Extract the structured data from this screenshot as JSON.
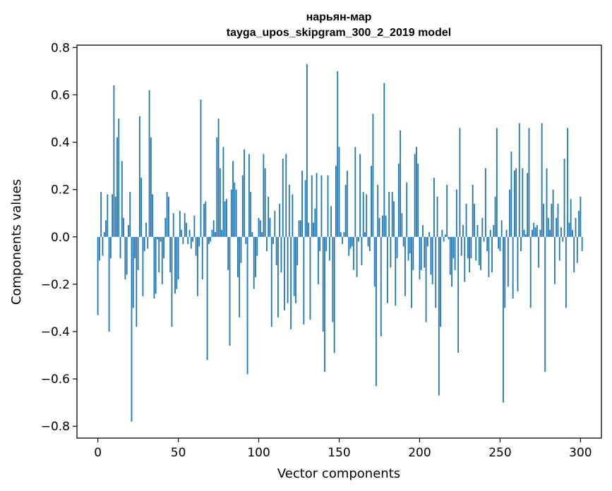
{
  "chart_data": {
    "type": "bar",
    "title_line1": "нарьян-мар",
    "title_line2": "tayga_upos_skipgram_300_2_2019 model",
    "xlabel": "Vector components",
    "ylabel": "Components values",
    "xlim": [
      -13,
      313
    ],
    "ylim": [
      -0.85,
      0.81
    ],
    "xticks": [
      0,
      50,
      100,
      150,
      200,
      250,
      300
    ],
    "xtick_labels": [
      "0",
      "50",
      "100",
      "150",
      "200",
      "250",
      "300"
    ],
    "yticks": [
      -0.8,
      -0.6,
      -0.4,
      -0.2,
      0.0,
      0.2,
      0.4,
      0.6,
      0.8
    ],
    "ytick_labels": [
      "−0.8",
      "−0.6",
      "−0.4",
      "−0.2",
      "0.0",
      "0.2",
      "0.4",
      "0.6",
      "0.8"
    ],
    "grid": false,
    "color": "#1f77b4",
    "values": [
      -0.33,
      -0.1,
      0.19,
      -0.08,
      0.02,
      0.07,
      0.18,
      -0.4,
      -0.09,
      0.18,
      0.64,
      0.17,
      0.42,
      0.5,
      -0.09,
      0.32,
      0.08,
      -0.18,
      -0.16,
      0.05,
      0.19,
      -0.78,
      -0.3,
      -0.09,
      -0.38,
      -0.14,
      0.51,
      0.25,
      -0.25,
      -0.06,
      0.06,
      -0.05,
      0.62,
      0.42,
      0.18,
      -0.26,
      -0.24,
      -0.01,
      -0.15,
      -0.02,
      -0.2,
      -0.09,
      0.08,
      0.19,
      0.17,
      -0.15,
      -0.38,
      0.1,
      -0.24,
      -0.22,
      -0.18,
      0.11,
      0.03,
      -0.03,
      0.1,
      0.06,
      -0.03,
      0.03,
      -0.05,
      -0.02,
      0.09,
      -0.08,
      -0.25,
      -0.04,
      0.58,
      -0.18,
      0.14,
      0.15,
      -0.52,
      -0.03,
      -0.02,
      0.03,
      0.07,
      0.02,
      0.42,
      0.5,
      0.29,
      0.03,
      0.38,
      0.15,
      0.16,
      -0.14,
      -0.46,
      0.2,
      0.32,
      0.23,
      0.2,
      -0.17,
      -0.34,
      -0.11,
      0.26,
      0.37,
      -0.03,
      -0.58,
      0.35,
      0.19,
      0.02,
      -0.22,
      -0.17,
      -0.08,
      0.08,
      0.07,
      0.02,
      0.35,
      0.29,
      -0.06,
      0.17,
      0.08,
      -0.38,
      -0.03,
      0.11,
      -0.12,
      -0.34,
      0.14,
      -0.15,
      0.33,
      -0.31,
      0.35,
      -0.28,
      0.22,
      -0.39,
      0.18,
      -0.25,
      -0.28,
      -0.12,
      0.07,
      0.07,
      0.28,
      -0.37,
      0.24,
      0.73,
      0.06,
      -0.35,
      0.26,
      0.06,
      0.12,
      0.27,
      -0.2,
      -0.06,
      0.26,
      -0.4,
      -0.57,
      -0.06,
      0.26,
      -0.1,
      0.13,
      -0.36,
      -0.49,
      0.3,
      0.7,
      0.38,
      0.02,
      -0.03,
      0.02,
      0.22,
      0.28,
      -0.08,
      -0.05,
      -0.04,
      -0.14,
      0.38,
      -0.17,
      -0.02,
      0.35,
      -0.12,
      0.19,
      0.02,
      0.18,
      -0.04,
      -0.06,
      0.3,
      0.52,
      -0.21,
      -0.63,
      0.22,
      0.08,
      -0.42,
      0.09,
      0.65,
      0.09,
      -0.28,
      0.19,
      -0.13,
      0.19,
      0.15,
      -0.29,
      -0.09,
      0.31,
      0.45,
      0.1,
      -0.04,
      -0.25,
      0.23,
      -0.1,
      -0.07,
      -0.3,
      -0.14,
      0.35,
      0.38,
      0.31,
      -0.18,
      -0.14,
      0.05,
      -0.13,
      -0.36,
      -0.04,
      0.02,
      -0.16,
      -0.2,
      0.25,
      -0.3,
      0.17,
      -0.67,
      -0.38,
      0.03,
      -0.02,
      0.01,
      0.22,
      -0.01,
      -0.16,
      -0.21,
      -0.09,
      -0.14,
      0.2,
      -0.49,
      0.46,
      -0.08,
      0.05,
      -0.19,
      0.14,
      -0.09,
      -0.15,
      -0.09,
      0.22,
      0.14,
      -0.1,
      0.05,
      -0.12,
      -0.14,
      0.08,
      -0.02,
      0.29,
      -0.06,
      -0.17,
      0.03,
      -0.15,
      0.05,
      0.17,
      0.46,
      -0.05,
      -0.06,
      0.07,
      -0.7,
      -0.3,
      0.03,
      -0.21,
      0.2,
      0.36,
      -0.26,
      0.28,
      0.29,
      -0.23,
      0.48,
      -0.06,
      0.29,
      0.03,
      0.01,
      0.27,
      0.46,
      -0.3,
      0.03,
      0.06,
      0.04,
      0.05,
      -0.13,
      0.03,
      0.48,
      0.14,
      -0.57,
      0.29,
      0.08,
      0.03,
      0.14,
      0.2,
      -0.2,
      0.08,
      0.14,
      -0.1,
      0.04,
      -0.02,
      0.33,
      -0.3,
      0.46,
      0.06,
      0.16,
      0.03,
      -0.15,
      0.08,
      -0.11,
      0.11,
      0.17,
      -0.06
    ]
  }
}
